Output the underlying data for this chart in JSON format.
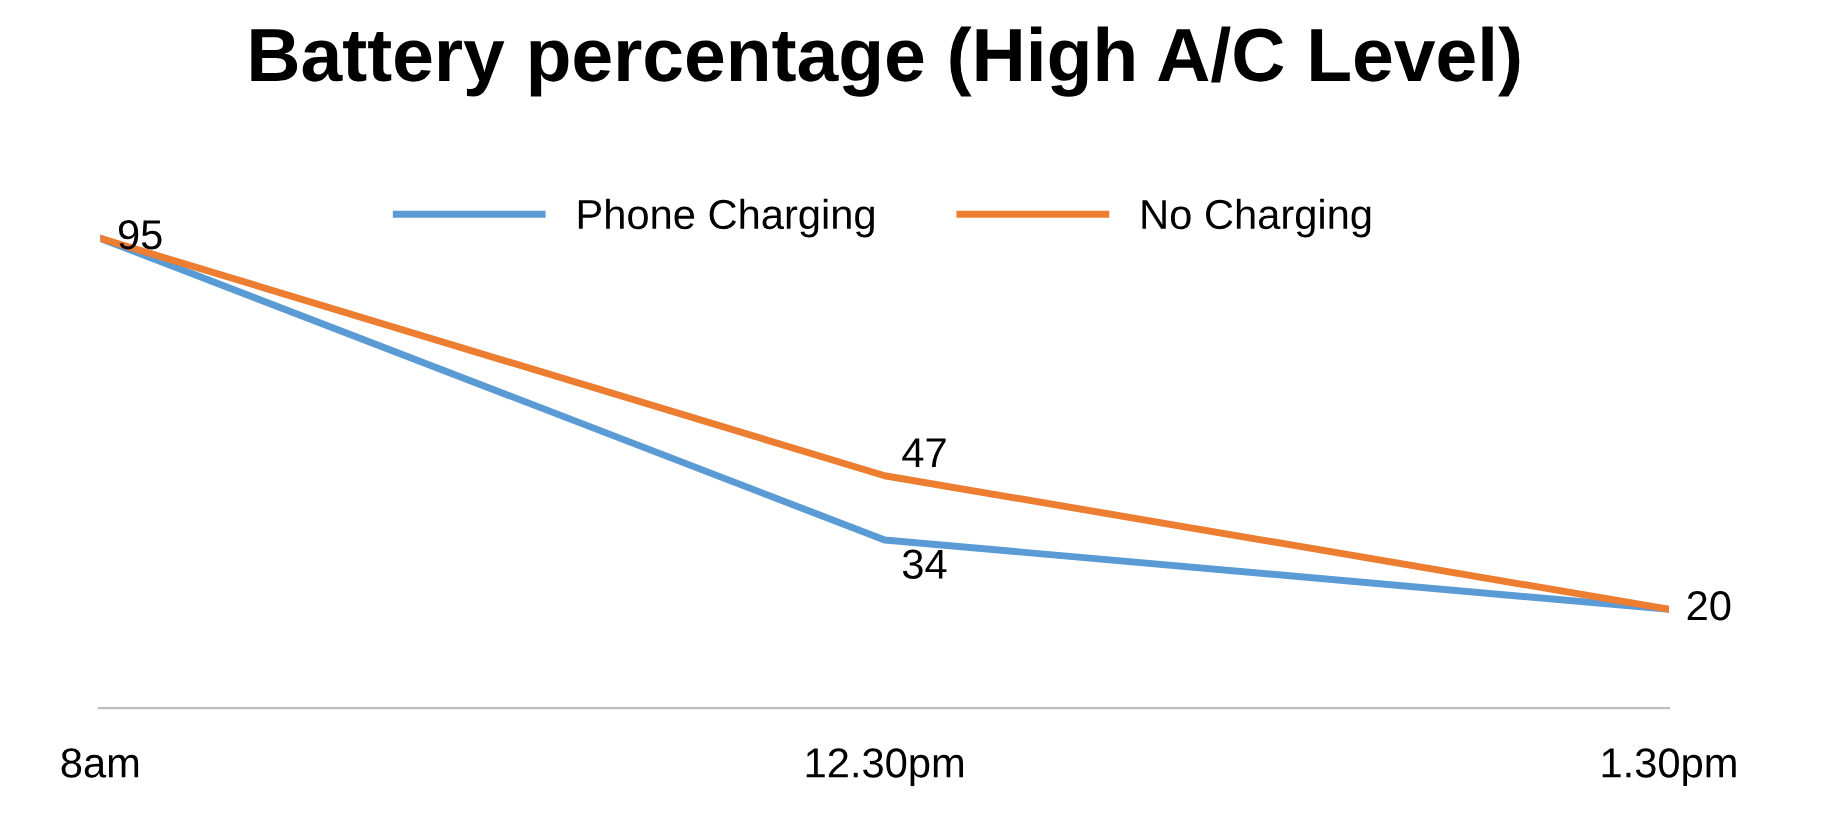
{
  "chart_data": {
    "type": "line",
    "title": "Battery percentage (High A/C Level)",
    "categories": [
      "8am",
      "12.30pm",
      "1.30pm"
    ],
    "legend": "top",
    "grid": false,
    "marker": "none",
    "line_style": "solid",
    "series": [
      {
        "name": "Phone Charging",
        "color": "#5b9bd5",
        "values": [
          95,
          34,
          20
        ],
        "value_labels": [
          null,
          "34",
          null
        ]
      },
      {
        "name": "No Charging",
        "color": "#ed7d31",
        "values": [
          95,
          47,
          20
        ],
        "value_labels": [
          "95",
          "47",
          "20"
        ]
      }
    ]
  }
}
